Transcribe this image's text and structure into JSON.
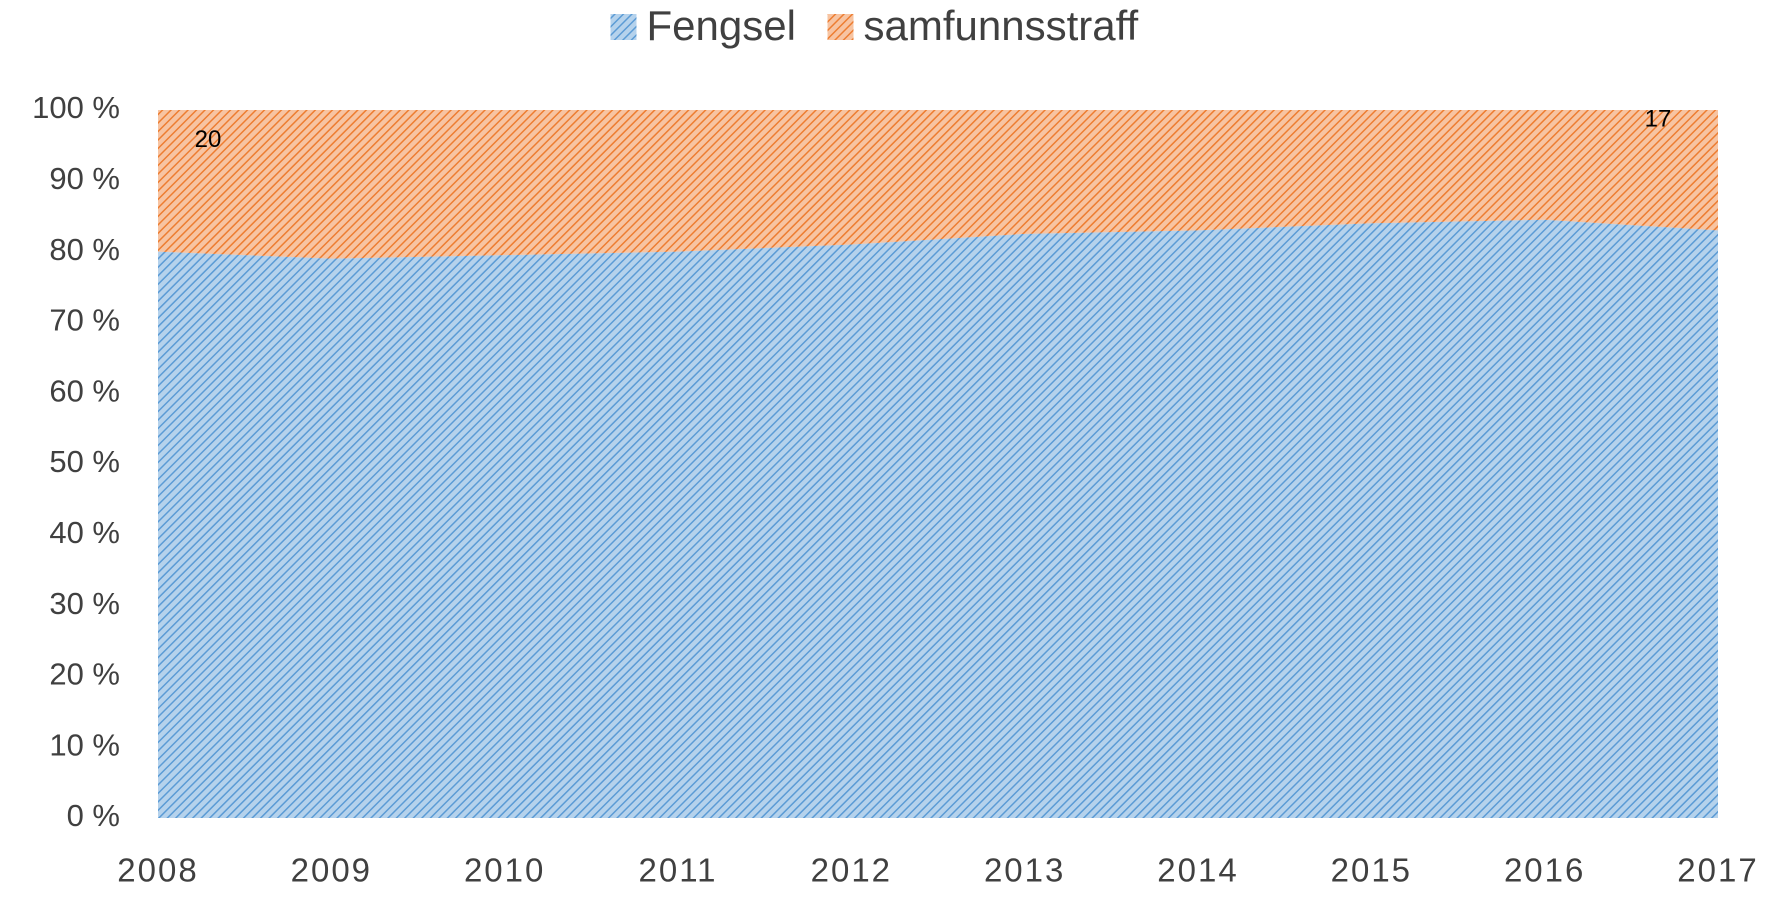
{
  "chart_data": {
    "type": "area",
    "stacked": true,
    "categories": [
      "2008",
      "2009",
      "2010",
      "2011",
      "2012",
      "2013",
      "2014",
      "2015",
      "2016",
      "2017"
    ],
    "series": [
      {
        "name": "Fengsel",
        "color": "#5b9bd5",
        "values": [
          80,
          79,
          79.5,
          80,
          81,
          82.5,
          83,
          84,
          84.5,
          83
        ]
      },
      {
        "name": "samfunnsstraff",
        "color": "#ed7d31",
        "values": [
          20,
          21,
          20.5,
          20,
          19,
          17.5,
          17,
          16,
          15.5,
          17
        ],
        "value_labels": [
          "20",
          null,
          null,
          null,
          null,
          null,
          null,
          null,
          null,
          "17"
        ]
      }
    ],
    "ylim": [
      0,
      100
    ],
    "yticks": [
      {
        "value": 0,
        "label": "0 %"
      },
      {
        "value": 10,
        "label": "10 %"
      },
      {
        "value": 20,
        "label": "20 %"
      },
      {
        "value": 30,
        "label": "30 %"
      },
      {
        "value": 40,
        "label": "40 %"
      },
      {
        "value": 50,
        "label": "50 %"
      },
      {
        "value": 60,
        "label": "60 %"
      },
      {
        "value": 70,
        "label": "70 %"
      },
      {
        "value": 80,
        "label": "80 %"
      },
      {
        "value": 90,
        "label": "90 %"
      },
      {
        "value": 100,
        "label": "100 %"
      }
    ],
    "legend": "top"
  }
}
